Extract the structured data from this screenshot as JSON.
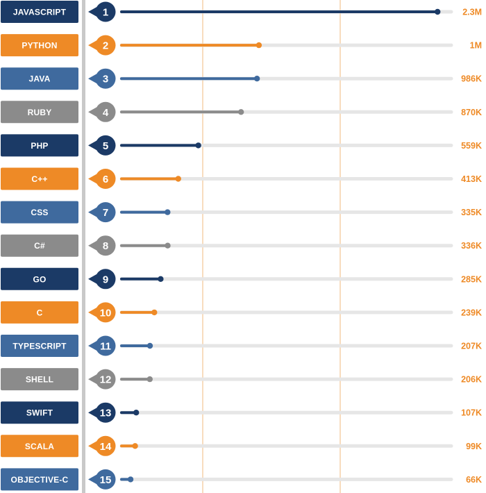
{
  "colors": {
    "navy": "#1b3a66",
    "orange": "#ee8a26",
    "blue": "#3f6a9e",
    "gray": "#8b8b8b",
    "track": "#e6e6e6",
    "divider": "#c9c9c9",
    "gridline": "#f2b97e",
    "value_text": "#ee8a26"
  },
  "chart_data": {
    "type": "bar",
    "style": "lollipop",
    "orientation": "horizontal",
    "xlim": [
      0,
      2400000
    ],
    "grid": "vertical-lines",
    "categories": [
      "JAVASCRIPT",
      "PYTHON",
      "JAVA",
      "RUBY",
      "PHP",
      "C++",
      "CSS",
      "C#",
      "GO",
      "C",
      "TYPESCRIPT",
      "SHELL",
      "SWIFT",
      "SCALA",
      "OBJECTIVE-C"
    ],
    "ranks": [
      "1",
      "2",
      "3",
      "4",
      "5",
      "6",
      "7",
      "8",
      "9",
      "10",
      "11",
      "12",
      "13",
      "14",
      "15"
    ],
    "values": [
      2300000,
      1000000,
      986000,
      870000,
      559000,
      413000,
      335000,
      336000,
      285000,
      239000,
      207000,
      206000,
      107000,
      99000,
      66000
    ],
    "value_labels": [
      "2.3M",
      "1M",
      "986K",
      "870K",
      "559K",
      "413K",
      "335K",
      "336K",
      "285K",
      "239K",
      "207K",
      "206K",
      "107K",
      "99K",
      "66K"
    ],
    "color_keys": [
      "navy",
      "orange",
      "blue",
      "gray",
      "navy",
      "orange",
      "blue",
      "gray",
      "navy",
      "orange",
      "blue",
      "gray",
      "navy",
      "orange",
      "blue"
    ]
  }
}
